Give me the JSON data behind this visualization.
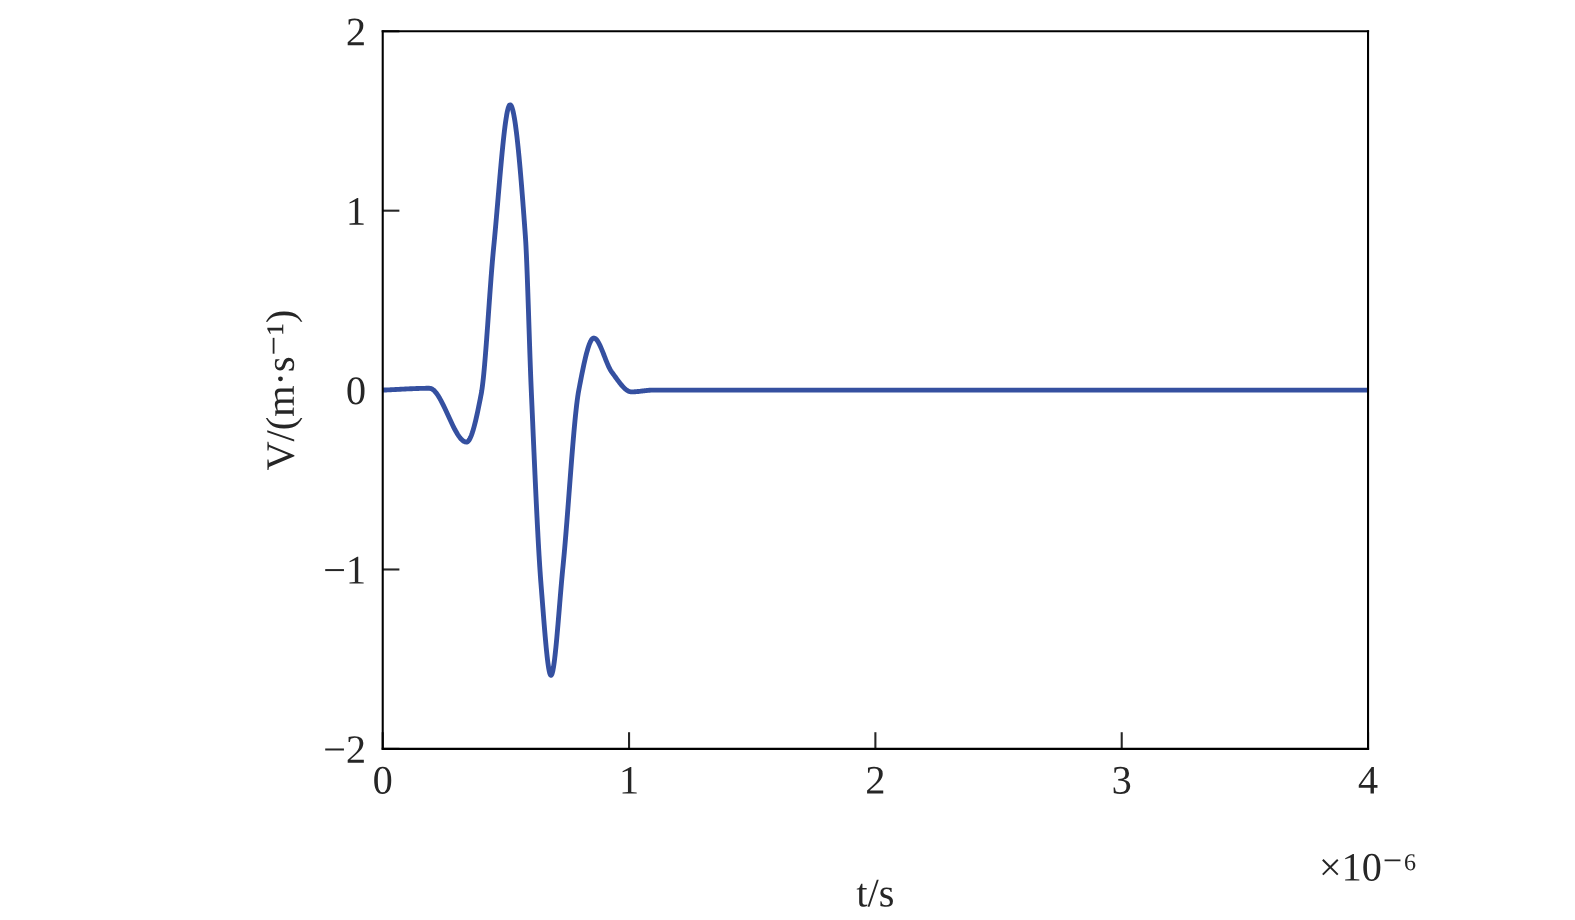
{
  "chart_data": {
    "type": "line",
    "xlabel": "t/s",
    "ylabel": "V/(m·s⁻¹)",
    "annotations": [
      "×10⁻⁶"
    ],
    "x": [
      0,
      0.19,
      0.34,
      0.4,
      0.45,
      0.517,
      0.579,
      0.603,
      0.643,
      0.683,
      0.732,
      0.796,
      0.857,
      0.93,
      1.01,
      1.1,
      4
    ],
    "series": [
      {
        "color": "#3550a0",
        "values": [
          0,
          0.01,
          -0.29,
          -0.02,
          0.79,
          1.59,
          0.86,
          0,
          -1.09,
          -1.59,
          -0.98,
          0,
          0.29,
          0.1,
          -0.01,
          0,
          0
        ]
      }
    ],
    "xlim": [
      0,
      4
    ],
    "ylim": [
      -2,
      2
    ],
    "xticks": [
      0,
      1,
      2,
      3,
      4
    ],
    "yticks": [
      -2,
      -1,
      0,
      1,
      2
    ],
    "grid": false,
    "legend": false
  }
}
